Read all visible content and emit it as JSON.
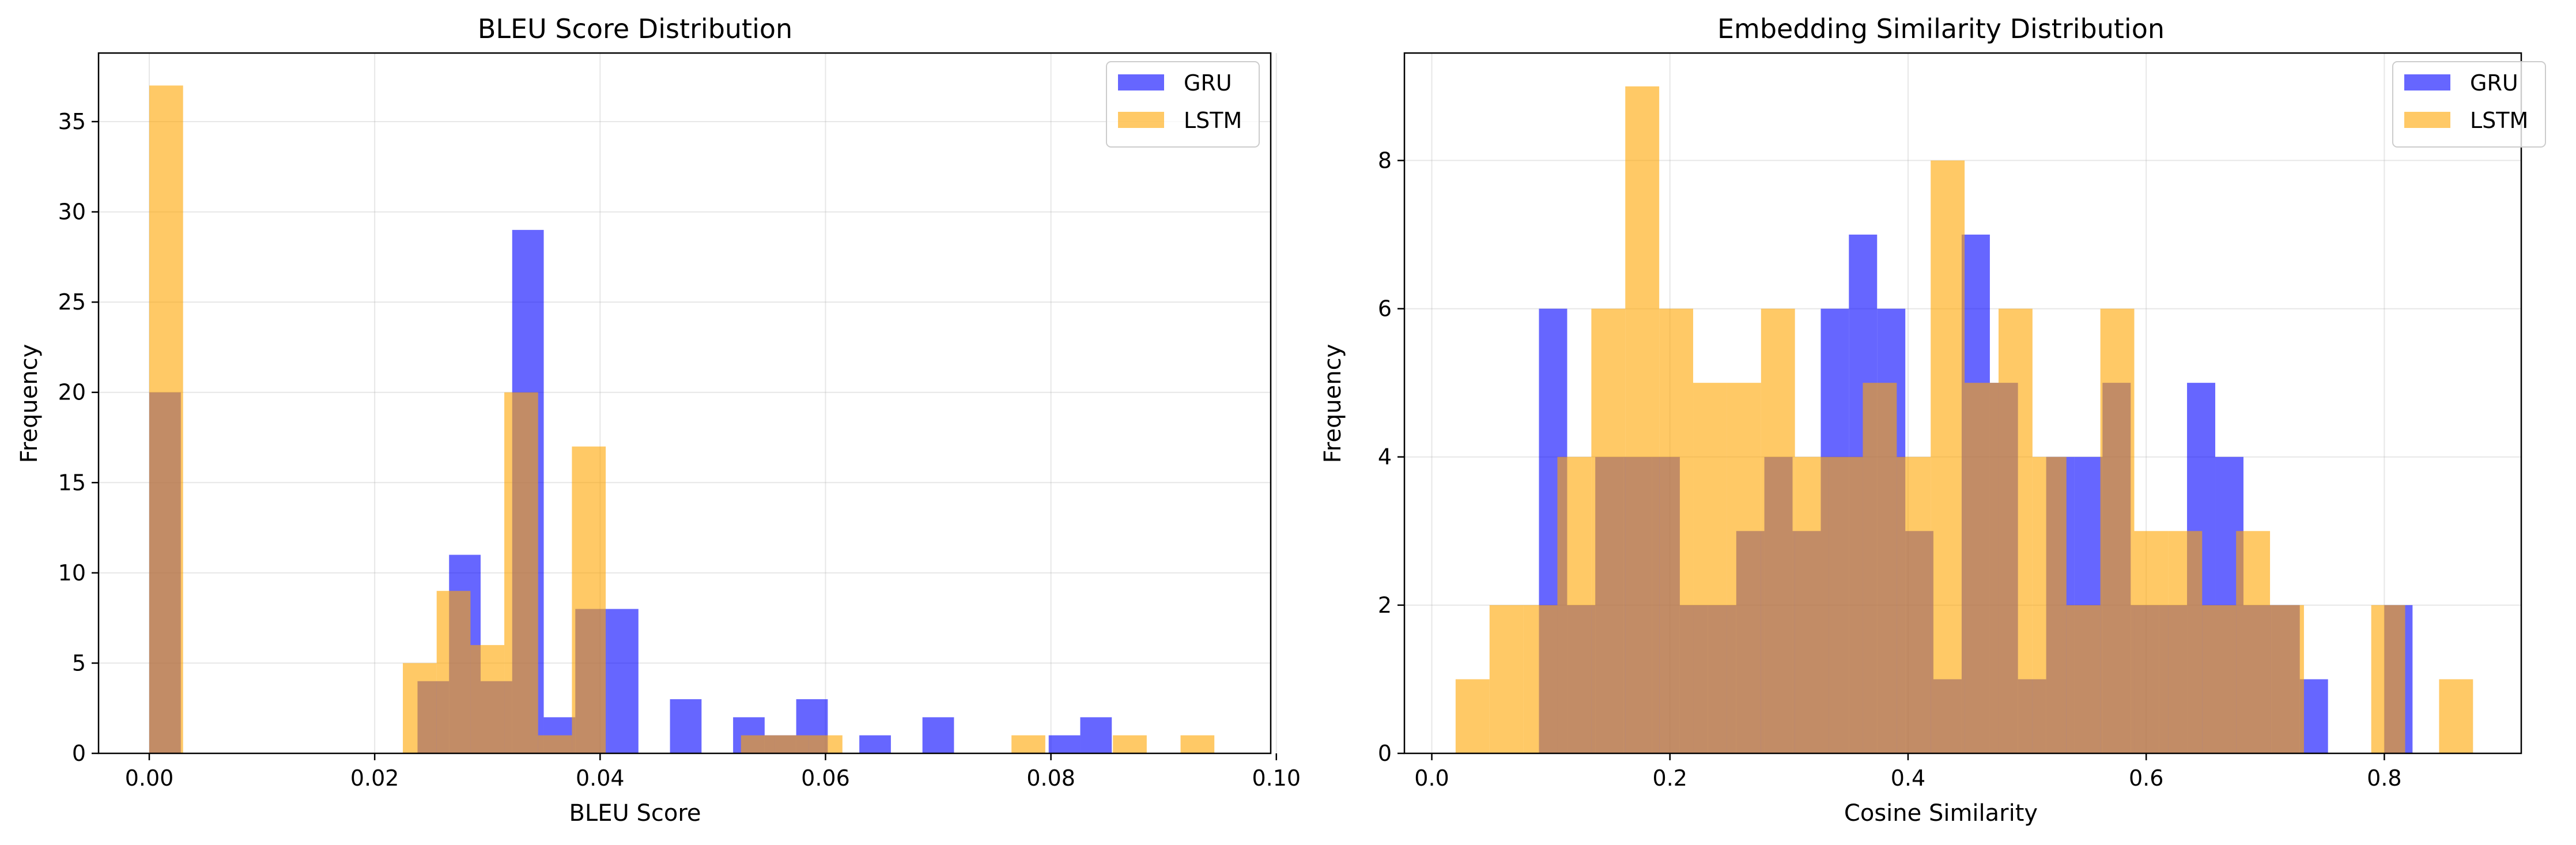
{
  "chart_data": [
    {
      "type": "bar",
      "title": "BLEU Score Distribution",
      "xlabel": "BLEU Score",
      "ylabel": "Frequency",
      "xlim": [
        -0.0045,
        0.0995
      ],
      "ylim": [
        0,
        38.8
      ],
      "xticks": [
        0.0,
        0.02,
        0.04,
        0.06,
        0.08,
        0.1
      ],
      "xtick_labels": [
        "0.00",
        "0.02",
        "0.04",
        "0.06",
        "0.08",
        "0.10"
      ],
      "yticks": [
        0,
        5,
        10,
        15,
        20,
        25,
        30,
        35
      ],
      "ytick_labels": [
        "0",
        "5",
        "10",
        "15",
        "20",
        "25",
        "30",
        "35"
      ],
      "grid": true,
      "legend": "top-right",
      "series": [
        {
          "name": "GRU",
          "color": "#0000ff",
          "alpha": 0.6,
          "bins": [
            [
              0.0,
              0.0028,
              20
            ],
            [
              0.0238,
              0.0266,
              4
            ],
            [
              0.0266,
              0.0294,
              11
            ],
            [
              0.0294,
              0.0322,
              4
            ],
            [
              0.0322,
              0.035,
              29
            ],
            [
              0.035,
              0.0378,
              2
            ],
            [
              0.0378,
              0.0406,
              8
            ],
            [
              0.0406,
              0.0434,
              8
            ],
            [
              0.0462,
              0.049,
              3
            ],
            [
              0.0518,
              0.0546,
              2
            ],
            [
              0.0546,
              0.0574,
              1
            ],
            [
              0.0574,
              0.0602,
              3
            ],
            [
              0.063,
              0.0658,
              1
            ],
            [
              0.0686,
              0.0714,
              2
            ],
            [
              0.0798,
              0.0826,
              1
            ],
            [
              0.0826,
              0.0854,
              2
            ]
          ]
        },
        {
          "name": "LSTM",
          "color": "#ffa500",
          "alpha": 0.6,
          "bins": [
            [
              0.0,
              0.003,
              37
            ],
            [
              0.0225,
              0.0255,
              5
            ],
            [
              0.0255,
              0.0285,
              9
            ],
            [
              0.0285,
              0.0315,
              6
            ],
            [
              0.0315,
              0.0345,
              20
            ],
            [
              0.0345,
              0.0375,
              1
            ],
            [
              0.0375,
              0.0405,
              17
            ],
            [
              0.0525,
              0.0555,
              1
            ],
            [
              0.0555,
              0.0585,
              1
            ],
            [
              0.0585,
              0.0615,
              1
            ],
            [
              0.0765,
              0.0795,
              1
            ],
            [
              0.0855,
              0.0885,
              1
            ],
            [
              0.0915,
              0.0945,
              1
            ]
          ]
        }
      ]
    },
    {
      "type": "bar",
      "title": "Embedding Similarity Distribution",
      "xlabel": "Cosine Similarity",
      "ylabel": "Frequency",
      "xlim": [
        -0.023,
        0.915
      ],
      "ylim": [
        0,
        9.45
      ],
      "xticks": [
        0.0,
        0.2,
        0.4,
        0.6,
        0.8
      ],
      "xtick_labels": [
        "0.0",
        "0.2",
        "0.4",
        "0.6",
        "0.8"
      ],
      "yticks": [
        0,
        2,
        4,
        6,
        8
      ],
      "ytick_labels": [
        "0",
        "2",
        "4",
        "6",
        "8"
      ],
      "grid": true,
      "legend": "top-right",
      "series": [
        {
          "name": "GRU",
          "color": "#0000ff",
          "alpha": 0.6,
          "bins": [
            [
              0.09,
              0.1137,
              6
            ],
            [
              0.1137,
              0.1373,
              2
            ],
            [
              0.1373,
              0.161,
              4
            ],
            [
              0.161,
              0.1847,
              4
            ],
            [
              0.1847,
              0.2083,
              4
            ],
            [
              0.2083,
              0.232,
              2
            ],
            [
              0.232,
              0.2557,
              2
            ],
            [
              0.2557,
              0.2793,
              3
            ],
            [
              0.2793,
              0.303,
              4
            ],
            [
              0.303,
              0.3267,
              3
            ],
            [
              0.3267,
              0.3503,
              6
            ],
            [
              0.3503,
              0.374,
              7
            ],
            [
              0.374,
              0.3977,
              6
            ],
            [
              0.3977,
              0.4213,
              3
            ],
            [
              0.4213,
              0.445,
              1
            ],
            [
              0.445,
              0.4687,
              7
            ],
            [
              0.4687,
              0.4923,
              5
            ],
            [
              0.4923,
              0.516,
              1
            ],
            [
              0.516,
              0.5397,
              4
            ],
            [
              0.5397,
              0.5633,
              4
            ],
            [
              0.5633,
              0.587,
              5
            ],
            [
              0.587,
              0.6107,
              2
            ],
            [
              0.6107,
              0.6343,
              2
            ],
            [
              0.6343,
              0.658,
              5
            ],
            [
              0.658,
              0.6817,
              4
            ],
            [
              0.6817,
              0.7053,
              2
            ],
            [
              0.7053,
              0.729,
              2
            ],
            [
              0.729,
              0.7527,
              1
            ],
            [
              0.8,
              0.8237,
              2
            ]
          ]
        },
        {
          "name": "LSTM",
          "color": "#ffa500",
          "alpha": 0.6,
          "bins": [
            [
              0.02,
              0.0485,
              1
            ],
            [
              0.0485,
              0.077,
              2
            ],
            [
              0.077,
              0.1055,
              2
            ],
            [
              0.1055,
              0.134,
              4
            ],
            [
              0.134,
              0.1625,
              6
            ],
            [
              0.1625,
              0.191,
              9
            ],
            [
              0.191,
              0.2195,
              6
            ],
            [
              0.2195,
              0.248,
              5
            ],
            [
              0.248,
              0.2765,
              5
            ],
            [
              0.2765,
              0.305,
              6
            ],
            [
              0.305,
              0.3335,
              4
            ],
            [
              0.3335,
              0.362,
              4
            ],
            [
              0.362,
              0.3905,
              5
            ],
            [
              0.3905,
              0.419,
              4
            ],
            [
              0.419,
              0.4475,
              8
            ],
            [
              0.4475,
              0.476,
              5
            ],
            [
              0.476,
              0.5045,
              6
            ],
            [
              0.5045,
              0.533,
              4
            ],
            [
              0.533,
              0.5615,
              2
            ],
            [
              0.5615,
              0.59,
              6
            ],
            [
              0.59,
              0.6185,
              3
            ],
            [
              0.6185,
              0.647,
              3
            ],
            [
              0.647,
              0.6755,
              2
            ],
            [
              0.6755,
              0.704,
              3
            ],
            [
              0.704,
              0.7325,
              2
            ],
            [
              0.789,
              0.8175,
              2
            ],
            [
              0.846,
              0.8745,
              1
            ]
          ]
        }
      ]
    }
  ]
}
